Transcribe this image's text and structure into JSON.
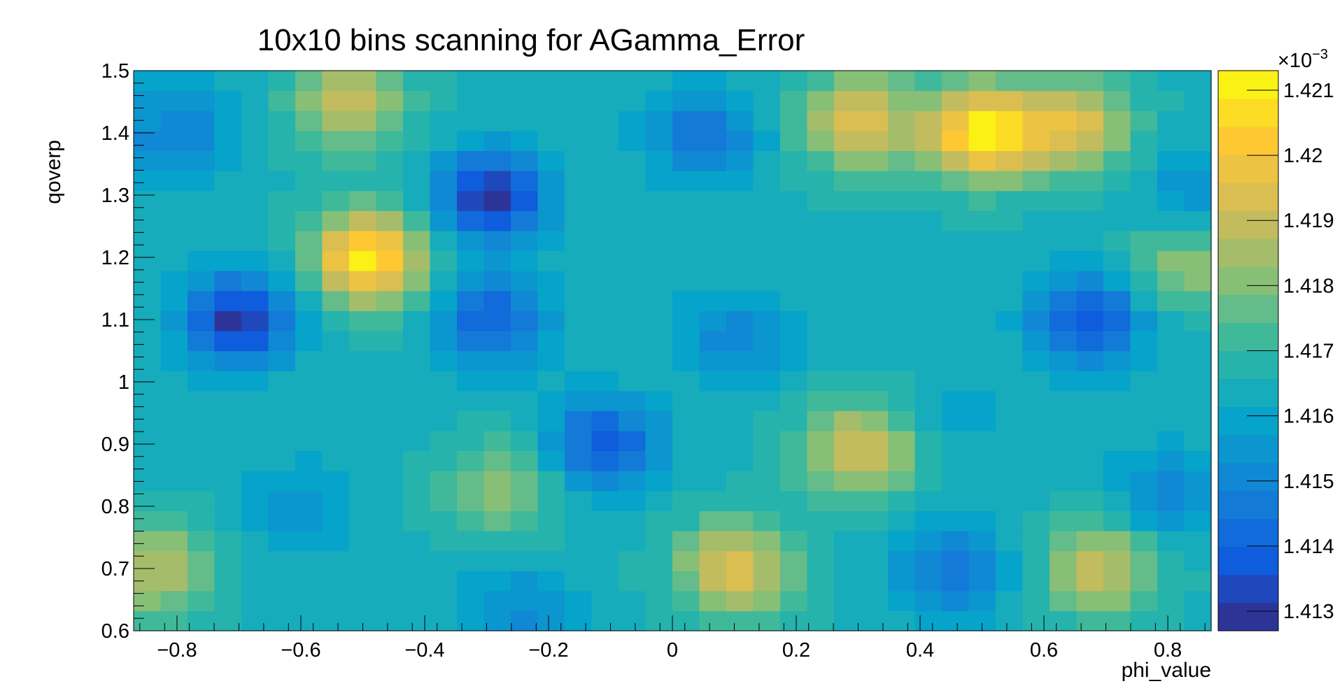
{
  "chart_data": {
    "type": "heatmap",
    "title": "10x10 bins scanning for AGamma_Error",
    "xlabel": "phi_value",
    "ylabel": "qoverp",
    "xlim": [
      -0.87,
      0.87
    ],
    "ylim": [
      0.6,
      1.5
    ],
    "x_ticks": [
      -0.8,
      -0.6,
      -0.4,
      -0.2,
      0,
      0.2,
      0.4,
      0.6,
      0.8
    ],
    "x_tick_labels": [
      "−0.8",
      "−0.6",
      "−0.4",
      "−0.2",
      "0",
      "0.2",
      "0.4",
      "0.6",
      "0.8"
    ],
    "y_ticks": [
      0.6,
      0.7,
      0.8,
      0.9,
      1.0,
      1.1,
      1.2,
      1.3,
      1.4,
      1.5
    ],
    "y_tick_labels": [
      "0.6",
      "0.7",
      "0.8",
      "0.9",
      "1",
      "1.1",
      "1.2",
      "1.3",
      "1.4",
      "1.5"
    ],
    "z_range": [
      1.4127,
      1.4213
    ],
    "z_multiplier": "×10",
    "z_exponent": "−3",
    "z_ticks": [
      1.413,
      1.414,
      1.415,
      1.416,
      1.417,
      1.418,
      1.419,
      1.42,
      1.421
    ],
    "z_tick_labels": [
      "1.413",
      "1.414",
      "1.415",
      "1.416",
      "1.417",
      "1.418",
      "1.419",
      "1.42",
      "1.421"
    ],
    "colormap": [
      "#352a87",
      "#0f5cdd",
      "#1481d6",
      "#06a4ca",
      "#2eb7a4",
      "#87bf77",
      "#d1bb59",
      "#fec832",
      "#f9fb0e"
    ],
    "grid": false,
    "hotspots": [
      {
        "x": 0.5,
        "y": 1.4,
        "value": 1.421
      },
      {
        "x": 0.3,
        "y": 1.42,
        "value": 1.4195
      },
      {
        "x": 0.65,
        "y": 1.41,
        "value": 1.4193
      },
      {
        "x": -0.49,
        "y": 1.2,
        "value": 1.421
      },
      {
        "x": -0.52,
        "y": 1.45,
        "value": 1.419
      },
      {
        "x": 0.3,
        "y": 0.89,
        "value": 1.4193
      },
      {
        "x": 0.1,
        "y": 0.7,
        "value": 1.4196
      },
      {
        "x": 0.69,
        "y": 0.7,
        "value": 1.4191
      },
      {
        "x": -0.84,
        "y": 0.7,
        "value": 1.4188
      },
      {
        "x": 0.83,
        "y": 1.19,
        "value": 1.4183
      },
      {
        "x": -0.28,
        "y": 0.83,
        "value": 1.4182
      },
      {
        "x": -0.7,
        "y": 1.1,
        "value": 1.4129
      },
      {
        "x": -0.29,
        "y": 1.3,
        "value": 1.4129
      },
      {
        "x": -0.11,
        "y": 0.9,
        "value": 1.4138
      },
      {
        "x": 0.67,
        "y": 1.1,
        "value": 1.4136
      },
      {
        "x": 0.05,
        "y": 1.4,
        "value": 1.4145
      },
      {
        "x": 0.45,
        "y": 0.7,
        "value": 1.4145
      },
      {
        "x": -0.8,
        "y": 1.4,
        "value": 1.4148
      },
      {
        "x": -0.29,
        "y": 1.1,
        "value": 1.414
      },
      {
        "x": 0.8,
        "y": 0.82,
        "value": 1.415
      },
      {
        "x": 0.85,
        "y": 1.3,
        "value": 1.4152
      },
      {
        "x": -0.6,
        "y": 0.8,
        "value": 1.4155
      },
      {
        "x": -0.25,
        "y": 0.63,
        "value": 1.4152
      },
      {
        "x": 0.1,
        "y": 1.07,
        "value": 1.415
      },
      {
        "x": 0.47,
        "y": 0.95,
        "value": 1.416
      }
    ],
    "background_value": 1.4165
  }
}
